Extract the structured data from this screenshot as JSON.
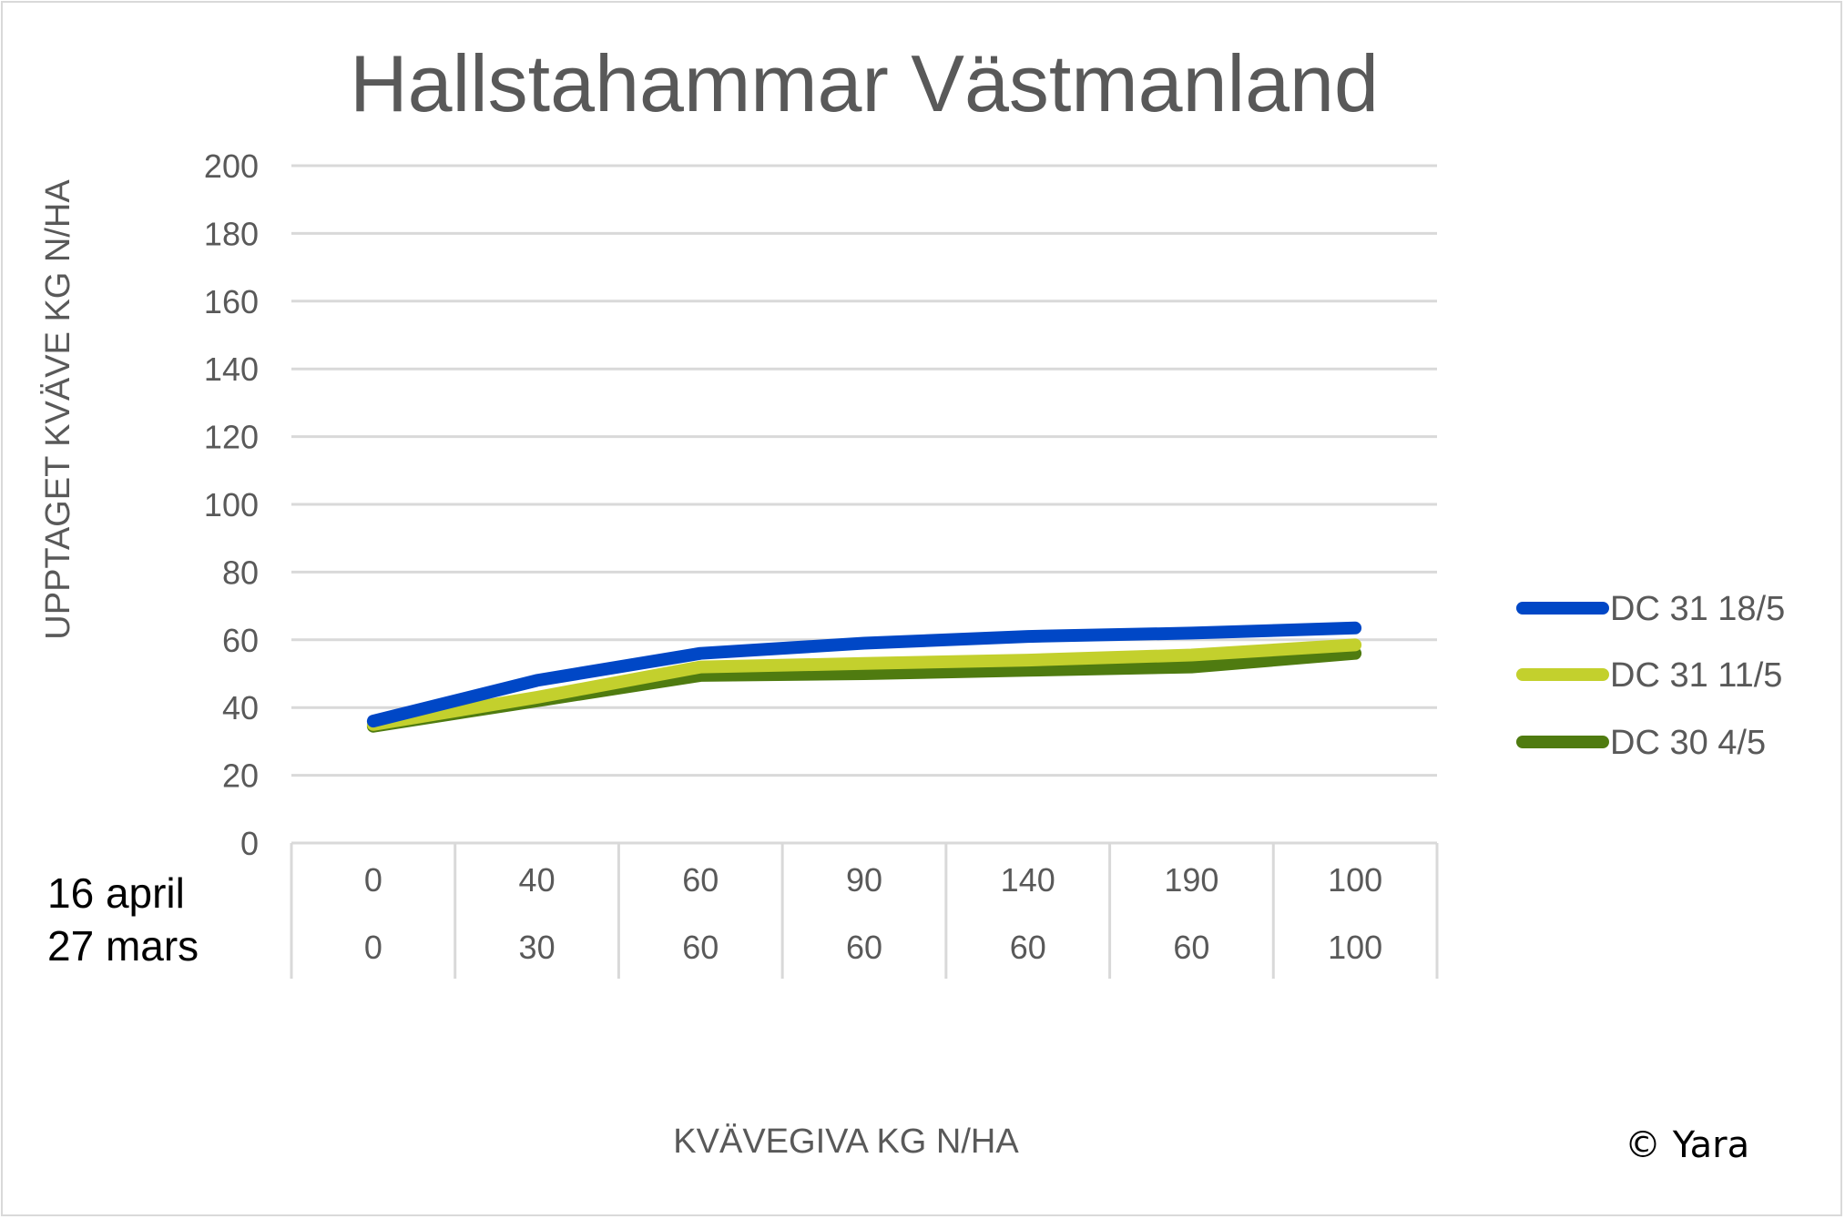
{
  "chart_data": {
    "type": "line",
    "title": "Hallstahammar Västmanland",
    "ylabel": "UPPTAGET KVÄVE KG N/HA",
    "xlabel": "KVÄVEGIVA  KG N/HA",
    "ylim": [
      0,
      200
    ],
    "yticks": [
      "0",
      "20",
      "40",
      "60",
      "80",
      "100",
      "120",
      "140",
      "160",
      "180",
      "200"
    ],
    "category_rows": [
      {
        "name": "16 april",
        "labels": [
          "0",
          "40",
          "60",
          "90",
          "140",
          "190",
          "100"
        ]
      },
      {
        "name": "27 mars",
        "labels": [
          "0",
          "30",
          "60",
          "60",
          "60",
          "60",
          "100"
        ]
      }
    ],
    "series": [
      {
        "name": "DC 31 18/5",
        "color": "#0047c6",
        "values": [
          36,
          48,
          56,
          59,
          61,
          62,
          63.5
        ]
      },
      {
        "name": "DC 31 11/5",
        "color": "#c3d02d",
        "values": [
          35,
          43,
          52,
          53,
          54,
          55.5,
          58.5
        ]
      },
      {
        "name": "DC 30 4/5",
        "color": "#4f7b10",
        "values": [
          34.5,
          42,
          49.5,
          50,
          51,
          52,
          56
        ]
      }
    ],
    "grid": true,
    "legend": "right"
  },
  "credit": "© Yara"
}
